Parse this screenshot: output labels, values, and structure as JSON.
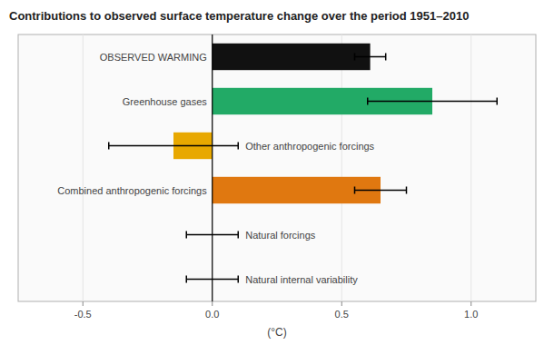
{
  "chart_data": {
    "type": "bar",
    "orientation": "horizontal",
    "title": "Contributions to observed surface temperature change over the period 1951–2010",
    "xlabel": "(°C)",
    "categories": [
      "OBSERVED WARMING",
      "Greenhouse gases",
      "Other anthropogenic forcings",
      "Combined anthropogenic forcings",
      "Natural forcings",
      "Natural internal variability"
    ],
    "values": [
      0.61,
      0.85,
      -0.15,
      0.65,
      0.0,
      0.0
    ],
    "error_low": [
      0.06,
      0.25,
      0.25,
      0.1,
      0.1,
      0.1
    ],
    "error_high": [
      0.06,
      0.25,
      0.25,
      0.1,
      0.1,
      0.1
    ],
    "colors": [
      "#111111",
      "#22aa66",
      "#e8a800",
      "#e07810",
      "none",
      "none"
    ],
    "xlim": [
      -0.75,
      1.25
    ],
    "xticks": [
      -0.5,
      {
        "value": 0.0,
        "label": "0.0"
      },
      0.5,
      {
        "value": 1.0,
        "label": "1.0"
      }
    ]
  }
}
